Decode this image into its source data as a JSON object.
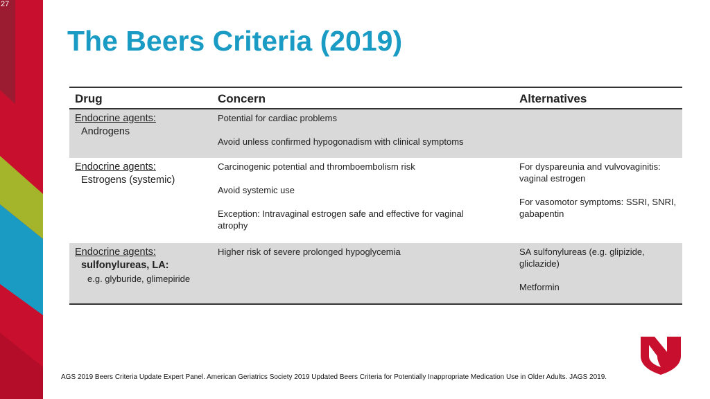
{
  "slide_number": "27",
  "title": "The Beers Criteria (2019)",
  "table": {
    "headers": [
      "Drug",
      "Concern",
      "Alternatives"
    ],
    "rows": [
      {
        "drug": {
          "category": "Endocrine agents:",
          "subclass": "Androgens"
        },
        "concern": [
          "Potential for cardiac problems",
          "Avoid unless confirmed hypogonadism with clinical symptoms"
        ],
        "alternatives": []
      },
      {
        "drug": {
          "category": "Endocrine agents:",
          "subclass": "Estrogens (systemic)"
        },
        "concern": [
          "Carcinogenic potential and thromboembolism risk",
          "Avoid systemic use",
          "Exception: Intravaginal estrogen safe and effective for vaginal atrophy"
        ],
        "alternatives": [
          "For dyspareunia and vulvovaginitis: vaginal estrogen",
          "For vasomotor symptoms: SSRI, SNRI, gabapentin"
        ]
      },
      {
        "drug": {
          "category": "Endocrine agents:",
          "subclass": "sulfonylureas, LA:",
          "example": "e.g. glyburide, glimepiride"
        },
        "concern": [
          "Higher risk of severe prolonged hypoglycemia"
        ],
        "alternatives": [
          "SA sulfonylureas (e.g. glipizide, gliclazide)",
          "Metformin"
        ]
      }
    ]
  },
  "citation": "AGS 2019 Beers Criteria Update Expert Panel. American Geriatrics Society 2019 Updated Beers Criteria for Potentially Inappropriate Medication Use in Older Adults.  JAGS 2019."
}
